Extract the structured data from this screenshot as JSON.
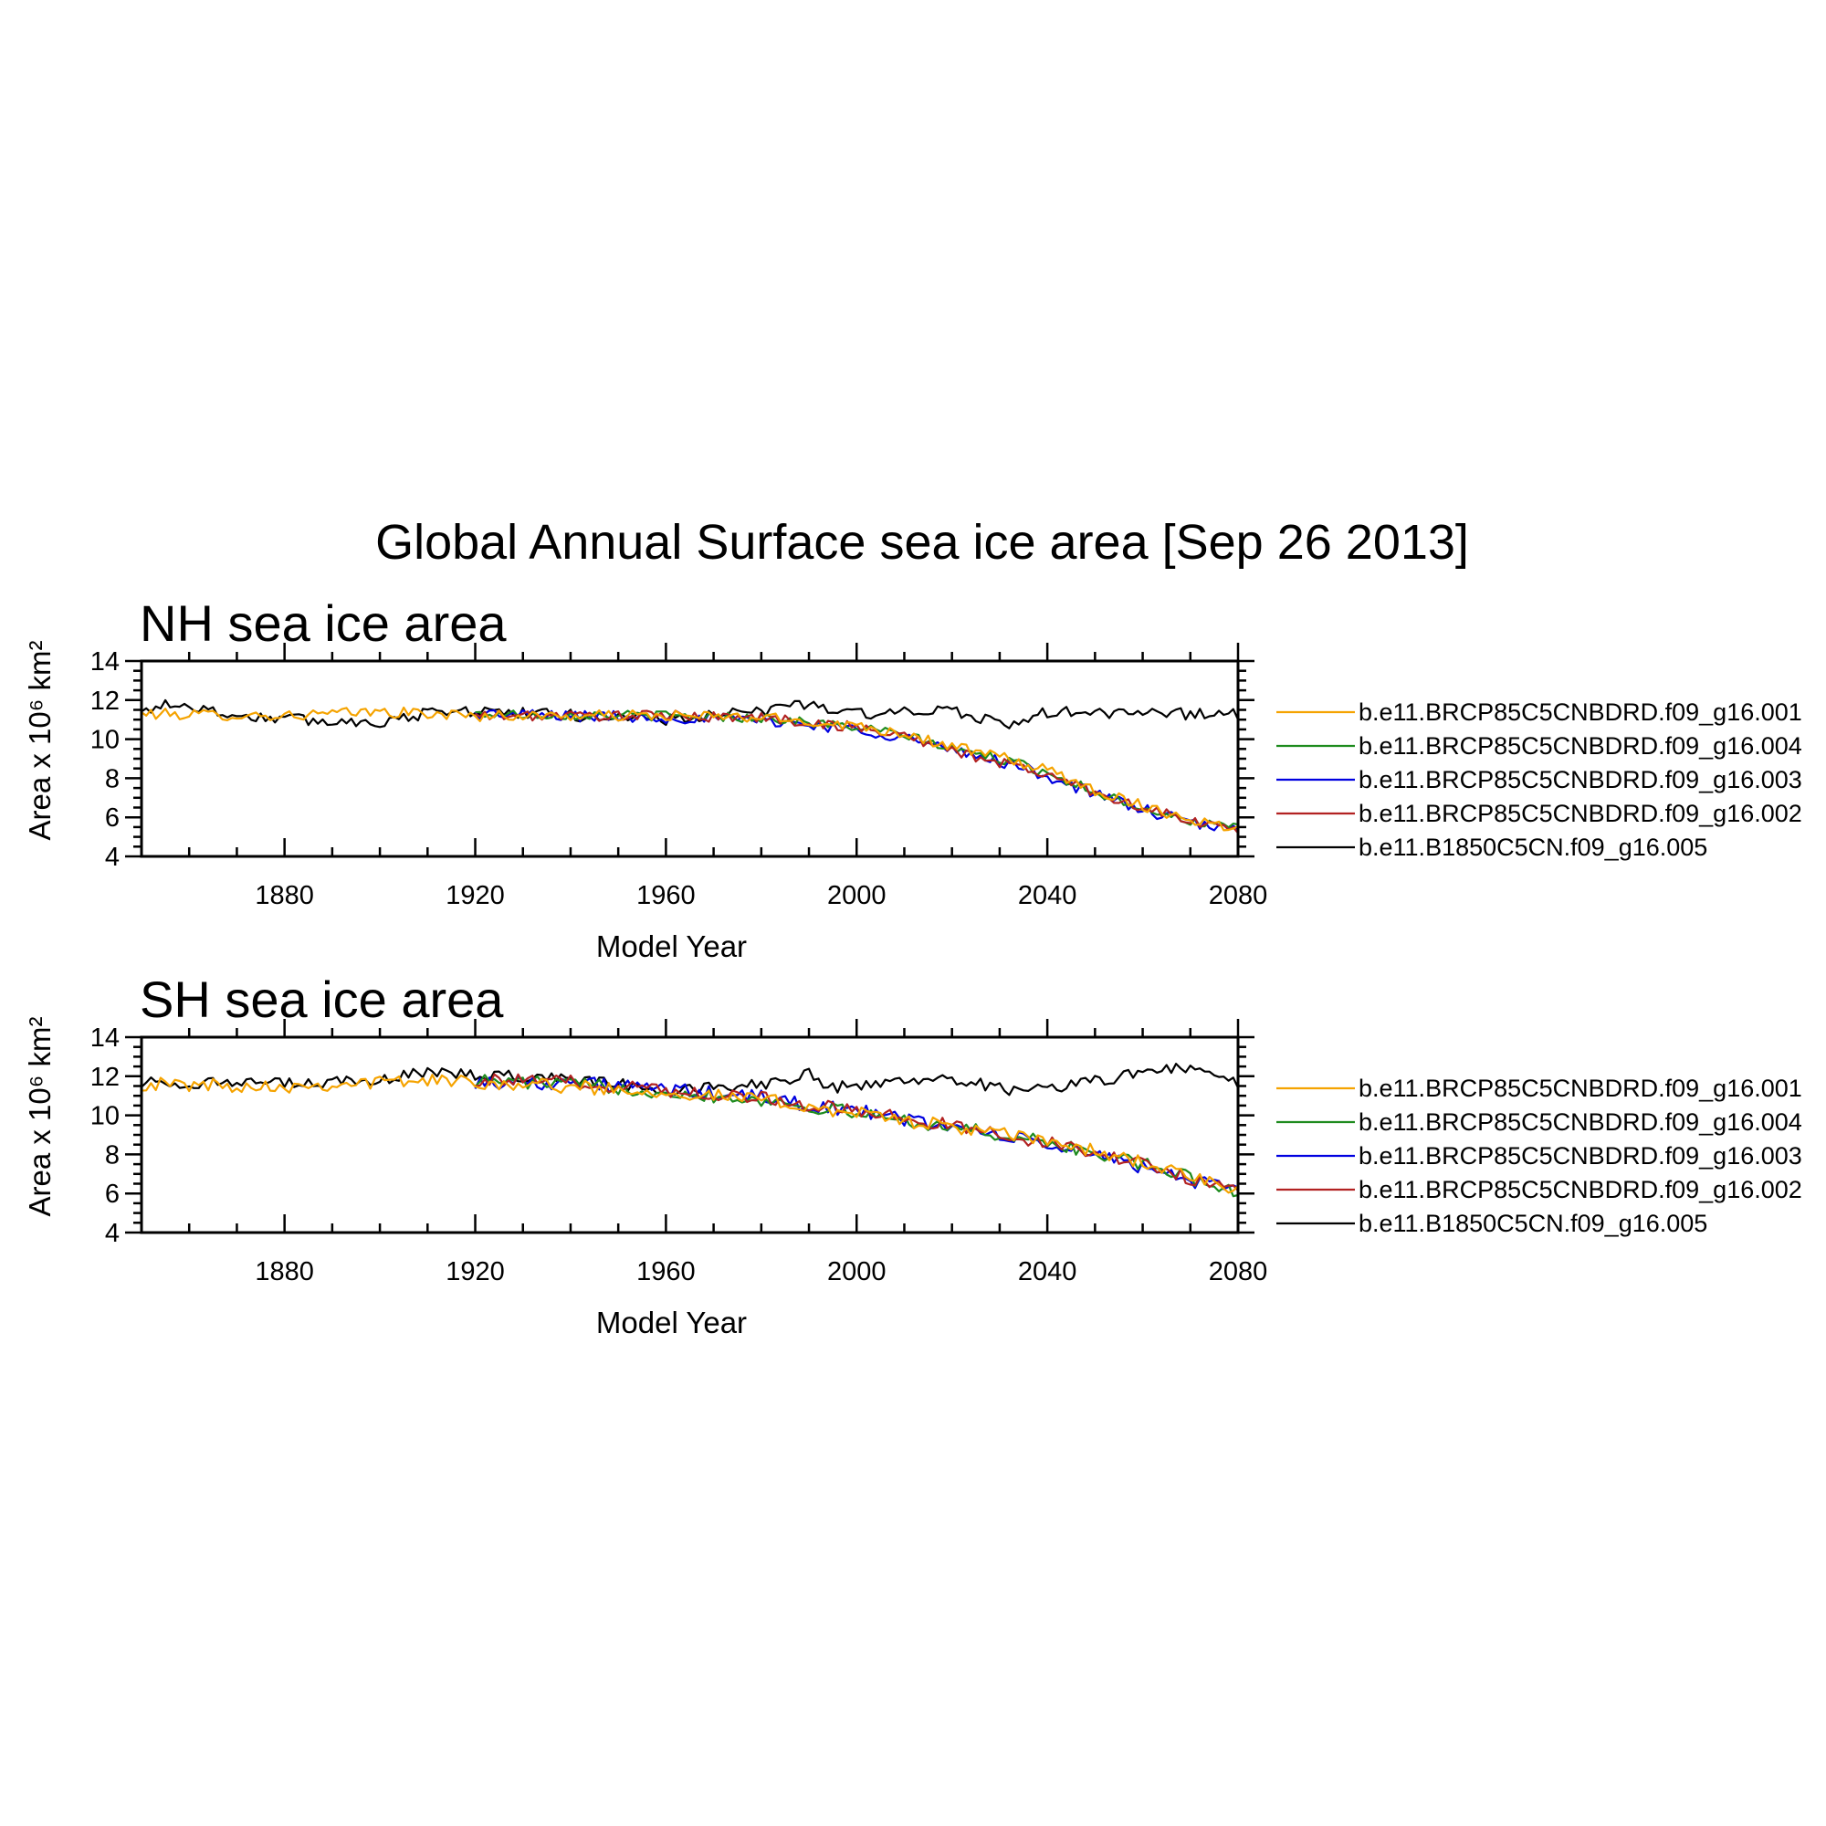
{
  "title": "Global Annual Surface sea ice area [Sep 26 2013]",
  "chart_data": [
    {
      "type": "line",
      "title": "NH sea ice area",
      "xlabel": "Model Year",
      "ylabel": "Area x 10⁶ km²",
      "xlim": [
        1850,
        2080
      ],
      "ylim": [
        4,
        14
      ],
      "xticks": [
        1880,
        1920,
        1960,
        2000,
        2040,
        2080
      ],
      "yticks": [
        4,
        6,
        8,
        10,
        12,
        14
      ],
      "legend_position": "right",
      "series": [
        {
          "name": "b.e11.BRCP85C5CNBDRD.f09_g16.001",
          "color": "#f5a300",
          "start": 1850,
          "noise": 0.28,
          "anchors": [
            [
              1850,
              11.3
            ],
            [
              1880,
              11.2
            ],
            [
              1900,
              11.4
            ],
            [
              1920,
              11.2
            ],
            [
              1960,
              11.2
            ],
            [
              1980,
              11.1
            ],
            [
              2000,
              10.7
            ],
            [
              2010,
              10.3
            ],
            [
              2020,
              9.6
            ],
            [
              2030,
              9.1
            ],
            [
              2040,
              8.4
            ],
            [
              2050,
              7.4
            ],
            [
              2060,
              6.6
            ],
            [
              2070,
              5.9
            ],
            [
              2080,
              5.4
            ]
          ]
        },
        {
          "name": "b.e11.BRCP85C5CNBDRD.f09_g16.004",
          "color": "#1e8b1e",
          "start": 1920,
          "noise": 0.25,
          "anchors": [
            [
              1920,
              11.3
            ],
            [
              1960,
              11.2
            ],
            [
              1980,
              11.1
            ],
            [
              2000,
              10.6
            ],
            [
              2010,
              10.2
            ],
            [
              2020,
              9.5
            ],
            [
              2030,
              9.0
            ],
            [
              2040,
              8.3
            ],
            [
              2050,
              7.3
            ],
            [
              2060,
              6.5
            ],
            [
              2070,
              5.8
            ],
            [
              2080,
              5.4
            ]
          ]
        },
        {
          "name": "b.e11.BRCP85C5CNBDRD.f09_g16.003",
          "color": "#0000e0",
          "start": 1920,
          "noise": 0.3,
          "anchors": [
            [
              1920,
              11.3
            ],
            [
              1960,
              11.1
            ],
            [
              1980,
              11.0
            ],
            [
              2000,
              10.5
            ],
            [
              2010,
              10.1
            ],
            [
              2020,
              9.4
            ],
            [
              2030,
              8.9
            ],
            [
              2040,
              8.1
            ],
            [
              2050,
              7.2
            ],
            [
              2060,
              6.4
            ],
            [
              2070,
              5.7
            ],
            [
              2080,
              5.3
            ]
          ]
        },
        {
          "name": "b.e11.BRCP85C5CNBDRD.f09_g16.002",
          "color": "#b22222",
          "start": 1920,
          "noise": 0.27,
          "anchors": [
            [
              1920,
              11.2
            ],
            [
              1960,
              11.2
            ],
            [
              1980,
              11.1
            ],
            [
              2000,
              10.6
            ],
            [
              2010,
              10.2
            ],
            [
              2020,
              9.4
            ],
            [
              2030,
              8.8
            ],
            [
              2040,
              8.2
            ],
            [
              2050,
              7.3
            ],
            [
              2060,
              6.5
            ],
            [
              2070,
              5.8
            ],
            [
              2080,
              5.3
            ]
          ]
        },
        {
          "name": "b.e11.B1850C5CN.f09_g16.005",
          "color": "#000000",
          "start": 1850,
          "noise": 0.3,
          "anchors": [
            [
              1850,
              11.3
            ],
            [
              1855,
              11.9
            ],
            [
              1870,
              11.2
            ],
            [
              1890,
              10.9
            ],
            [
              1900,
              10.9
            ],
            [
              1915,
              11.5
            ],
            [
              1960,
              11.0
            ],
            [
              1980,
              11.4
            ],
            [
              1987,
              11.9
            ],
            [
              2000,
              11.3
            ],
            [
              2020,
              11.4
            ],
            [
              2034,
              10.7
            ],
            [
              2040,
              11.4
            ],
            [
              2060,
              11.3
            ],
            [
              2080,
              11.3
            ]
          ]
        }
      ]
    },
    {
      "type": "line",
      "title": "SH sea ice area",
      "xlabel": "Model Year",
      "ylabel": "Area x 10⁶ km²",
      "xlim": [
        1850,
        2080
      ],
      "ylim": [
        4,
        14
      ],
      "xticks": [
        1880,
        1920,
        1960,
        2000,
        2040,
        2080
      ],
      "yticks": [
        4,
        6,
        8,
        10,
        12,
        14
      ],
      "legend_position": "right",
      "series": [
        {
          "name": "b.e11.BRCP85C5CNBDRD.f09_g16.001",
          "color": "#f5a300",
          "start": 1850,
          "noise": 0.35,
          "anchors": [
            [
              1850,
              11.6
            ],
            [
              1880,
              11.5
            ],
            [
              1910,
              11.8
            ],
            [
              1930,
              11.6
            ],
            [
              1960,
              11.2
            ],
            [
              1980,
              10.8
            ],
            [
              2000,
              10.1
            ],
            [
              2020,
              9.4
            ],
            [
              2040,
              8.7
            ],
            [
              2060,
              7.6
            ],
            [
              2080,
              6.1
            ]
          ]
        },
        {
          "name": "b.e11.BRCP85C5CNBDRD.f09_g16.004",
          "color": "#1e8b1e",
          "start": 1920,
          "noise": 0.35,
          "anchors": [
            [
              1920,
              11.8
            ],
            [
              1940,
              11.6
            ],
            [
              1960,
              11.2
            ],
            [
              1980,
              10.8
            ],
            [
              2000,
              10.1
            ],
            [
              2020,
              9.4
            ],
            [
              2040,
              8.6
            ],
            [
              2060,
              7.5
            ],
            [
              2080,
              6.1
            ]
          ]
        },
        {
          "name": "b.e11.BRCP85C5CNBDRD.f09_g16.003",
          "color": "#0000e0",
          "start": 1920,
          "noise": 0.38,
          "anchors": [
            [
              1920,
              11.7
            ],
            [
              1940,
              11.7
            ],
            [
              1960,
              11.3
            ],
            [
              1980,
              10.9
            ],
            [
              2000,
              10.2
            ],
            [
              2020,
              9.4
            ],
            [
              2040,
              8.5
            ],
            [
              2060,
              7.4
            ],
            [
              2080,
              6.0
            ]
          ]
        },
        {
          "name": "b.e11.BRCP85C5CNBDRD.f09_g16.002",
          "color": "#b22222",
          "start": 1920,
          "noise": 0.35,
          "anchors": [
            [
              1920,
              11.8
            ],
            [
              1940,
              11.7
            ],
            [
              1960,
              11.3
            ],
            [
              1980,
              10.9
            ],
            [
              2000,
              10.2
            ],
            [
              2020,
              9.5
            ],
            [
              2040,
              8.6
            ],
            [
              2060,
              7.5
            ],
            [
              2080,
              6.1
            ]
          ]
        },
        {
          "name": "b.e11.B1850C5CN.f09_g16.005",
          "color": "#000000",
          "start": 1850,
          "noise": 0.3,
          "anchors": [
            [
              1850,
              11.7
            ],
            [
              1880,
              11.6
            ],
            [
              1900,
              11.8
            ],
            [
              1910,
              12.2
            ],
            [
              1940,
              11.9
            ],
            [
              1960,
              11.3
            ],
            [
              1980,
              11.6
            ],
            [
              1990,
              12.1
            ],
            [
              1995,
              11.4
            ],
            [
              2010,
              11.8
            ],
            [
              2020,
              11.9
            ],
            [
              2035,
              11.2
            ],
            [
              2045,
              11.5
            ],
            [
              2060,
              12.2
            ],
            [
              2070,
              12.5
            ],
            [
              2080,
              11.6
            ]
          ]
        }
      ]
    }
  ]
}
